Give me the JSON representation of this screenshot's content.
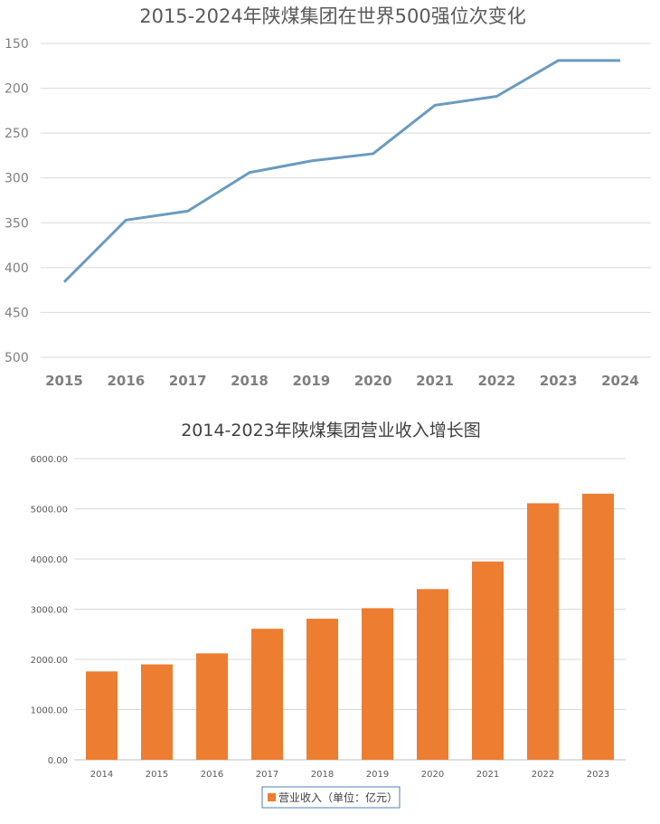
{
  "chart_data": [
    {
      "type": "line",
      "title": "2015-2024年陕煤集团在世界500强位次变化",
      "x": [
        "2015",
        "2016",
        "2017",
        "2018",
        "2019",
        "2020",
        "2021",
        "2022",
        "2023",
        "2024"
      ],
      "series": [
        {
          "values": [
            416,
            347,
            337,
            294,
            281,
            273,
            219,
            209,
            169,
            169
          ],
          "color": "#6a9bbf"
        }
      ],
      "y_ticks": [
        150,
        200,
        250,
        300,
        350,
        400,
        450,
        500
      ],
      "ylim": [
        150,
        500
      ],
      "y_inverted": true,
      "grid": true,
      "xlabel": "",
      "ylabel": ""
    },
    {
      "type": "bar",
      "title": "2014-2023年陕煤集团营业收入增长图",
      "categories": [
        "2014",
        "2015",
        "2016",
        "2017",
        "2018",
        "2019",
        "2020",
        "2021",
        "2022",
        "2023"
      ],
      "series": [
        {
          "name": "营业收入（单位：亿元）",
          "values": [
            1760,
            1900,
            2120,
            2610,
            2810,
            3020,
            3400,
            3950,
            5110,
            5300
          ],
          "color": "#ed7d31"
        }
      ],
      "y_ticks": [
        "0.00",
        "1000.00",
        "2000.00",
        "3000.00",
        "4000.00",
        "5000.00",
        "6000.00"
      ],
      "ylim": [
        0,
        6000
      ],
      "grid": true,
      "legend": "bottom",
      "xlabel": "",
      "ylabel": ""
    }
  ]
}
